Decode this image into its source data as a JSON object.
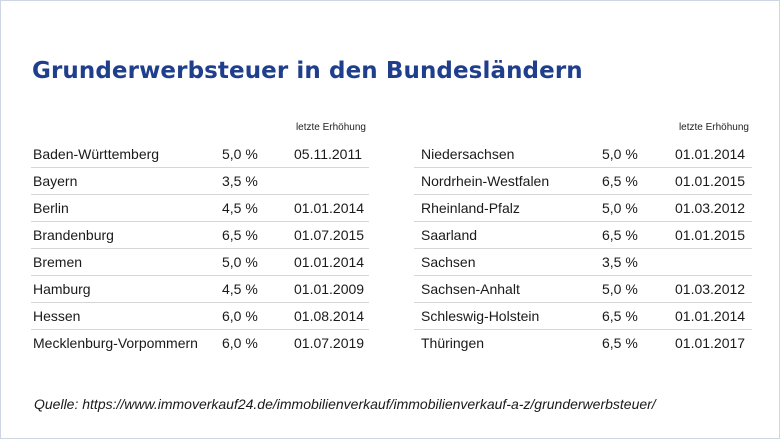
{
  "title": "Grunderwerbsteuer in den Bundesländern",
  "left_table": {
    "header": "letzte Erhöhung",
    "rows": [
      {
        "state": "Baden-Württemberg",
        "rate": "5,0 %",
        "date": "05.11.2011"
      },
      {
        "state": "Bayern",
        "rate": "3,5 %",
        "date": ""
      },
      {
        "state": "Berlin",
        "rate": "4,5 %",
        "date": "01.01.2014"
      },
      {
        "state": "Brandenburg",
        "rate": "6,5 %",
        "date": "01.07.2015"
      },
      {
        "state": "Bremen",
        "rate": "5,0 %",
        "date": "01.01.2014"
      },
      {
        "state": "Hamburg",
        "rate": "4,5 %",
        "date": "01.01.2009"
      },
      {
        "state": "Hessen",
        "rate": "6,0 %",
        "date": "01.08.2014"
      },
      {
        "state": "Mecklenburg-Vorpommern",
        "rate": "6,0 %",
        "date": "01.07.2019"
      }
    ]
  },
  "right_table": {
    "header": "letzte Erhöhung",
    "rows": [
      {
        "state": "Niedersachsen",
        "rate": "5,0 %",
        "date": "01.01.2014"
      },
      {
        "state": "Nordrhein-Westfalen",
        "rate": "6,5 %",
        "date": "01.01.2015"
      },
      {
        "state": "Rheinland-Pfalz",
        "rate": "5,0 %",
        "date": "01.03.2012"
      },
      {
        "state": "Saarland",
        "rate": "6,5 %",
        "date": "01.01.2015"
      },
      {
        "state": "Sachsen",
        "rate": "3,5 %",
        "date": ""
      },
      {
        "state": "Sachsen-Anhalt",
        "rate": "5,0 %",
        "date": "01.03.2012"
      },
      {
        "state": "Schleswig-Holstein",
        "rate": "6,5 %",
        "date": "01.01.2014"
      },
      {
        "state": "Thüringen",
        "rate": "6,5 %",
        "date": "01.01.2017"
      }
    ]
  },
  "source": "Quelle: https://www.immoverkauf24.de/immobilienverkauf/immobilienverkauf-a-z/grunderwerbsteuer/",
  "colors": {
    "title": "#1f3e8c",
    "divider": "#d6d6d6"
  }
}
